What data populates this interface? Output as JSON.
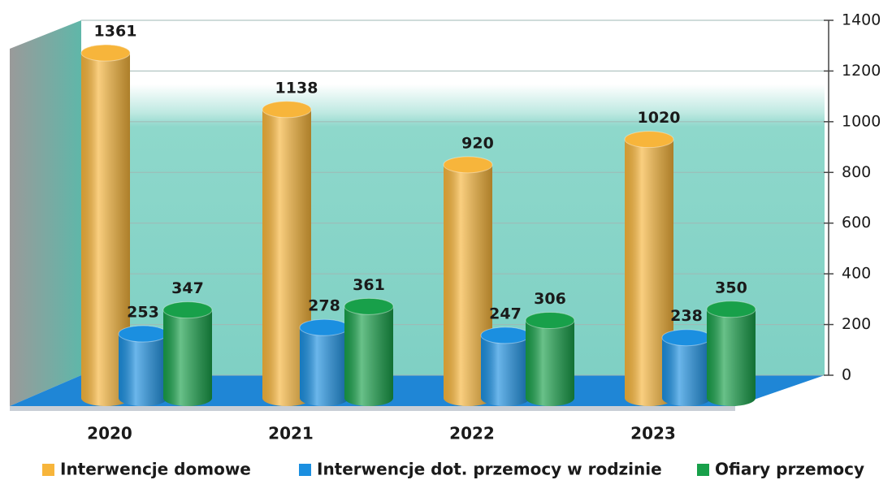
{
  "chart_data": {
    "type": "bar3d",
    "categories": [
      "2020",
      "2021",
      "2022",
      "2023"
    ],
    "series": [
      {
        "name": "Interwencje domowe",
        "color": "#f7b53b",
        "values": [
          1361,
          1138,
          920,
          1020
        ]
      },
      {
        "name": "Interwencje dot. przemocy w rodzinie",
        "color": "#1b8fe0",
        "values": [
          253,
          278,
          247,
          238
        ]
      },
      {
        "name": "Ofiary przemocy",
        "color": "#18a04a",
        "values": [
          347,
          361,
          306,
          350
        ]
      }
    ],
    "ylim": [
      0,
      1400
    ],
    "yticks": [
      0,
      200,
      400,
      600,
      800,
      1000,
      1200,
      1400
    ],
    "grid": true,
    "legend": "bottom"
  }
}
